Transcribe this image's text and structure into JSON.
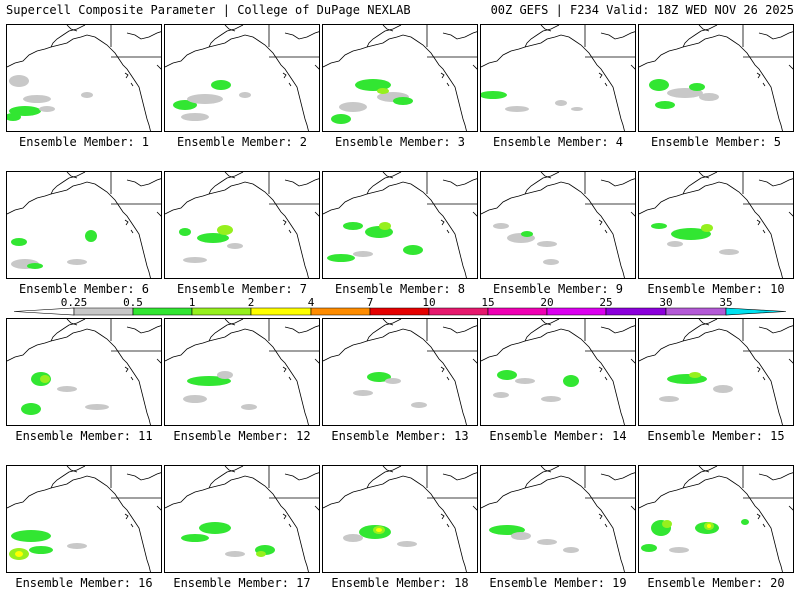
{
  "header": {
    "left_title": "Supercell Composite Parameter | College of DuPage NEXLAB",
    "right_title": "00Z GEFS | F234 Valid: 18Z WED NOV 26 2025"
  },
  "member_label_prefix": "Ensemble Member: ",
  "members": [
    {
      "number": "1",
      "label": "Ensemble Member: 1"
    },
    {
      "number": "2",
      "label": "Ensemble Member: 2"
    },
    {
      "number": "3",
      "label": "Ensemble Member: 3"
    },
    {
      "number": "4",
      "label": "Ensemble Member: 4"
    },
    {
      "number": "5",
      "label": "Ensemble Member: 5"
    },
    {
      "number": "6",
      "label": "Ensemble Member: 6"
    },
    {
      "number": "7",
      "label": "Ensemble Member: 7"
    },
    {
      "number": "8",
      "label": "Ensemble Member: 8"
    },
    {
      "number": "9",
      "label": "Ensemble Member: 9"
    },
    {
      "number": "10",
      "label": "Ensemble Member: 10"
    },
    {
      "number": "11",
      "label": "Ensemble Member: 11"
    },
    {
      "number": "12",
      "label": "Ensemble Member: 12"
    },
    {
      "number": "13",
      "label": "Ensemble Member: 13"
    },
    {
      "number": "14",
      "label": "Ensemble Member: 14"
    },
    {
      "number": "15",
      "label": "Ensemble Member: 15"
    },
    {
      "number": "16",
      "label": "Ensemble Member: 16"
    },
    {
      "number": "17",
      "label": "Ensemble Member: 17"
    },
    {
      "number": "18",
      "label": "Ensemble Member: 18"
    },
    {
      "number": "19",
      "label": "Ensemble Member: 19"
    },
    {
      "number": "20",
      "label": "Ensemble Member: 20"
    }
  ],
  "colorbar": {
    "tick_labels": [
      "0.25",
      "0.5",
      "1",
      "2",
      "4",
      "7",
      "10",
      "15",
      "20",
      "25",
      "30",
      "35"
    ],
    "colors": [
      "#ffffff",
      "#c8c8c8",
      "#32e632",
      "#96f01e",
      "#ffff00",
      "#ff8c00",
      "#e60000",
      "#e6196e",
      "#f000b4",
      "#dc00f0",
      "#8c00dc",
      "#b45ad7",
      "#00e1f0"
    ]
  },
  "colors": {
    "gray": "#c8c8c8",
    "green": "#32e632",
    "lime": "#96f01e",
    "yellow": "#ffff00",
    "coastline": "#000000"
  }
}
